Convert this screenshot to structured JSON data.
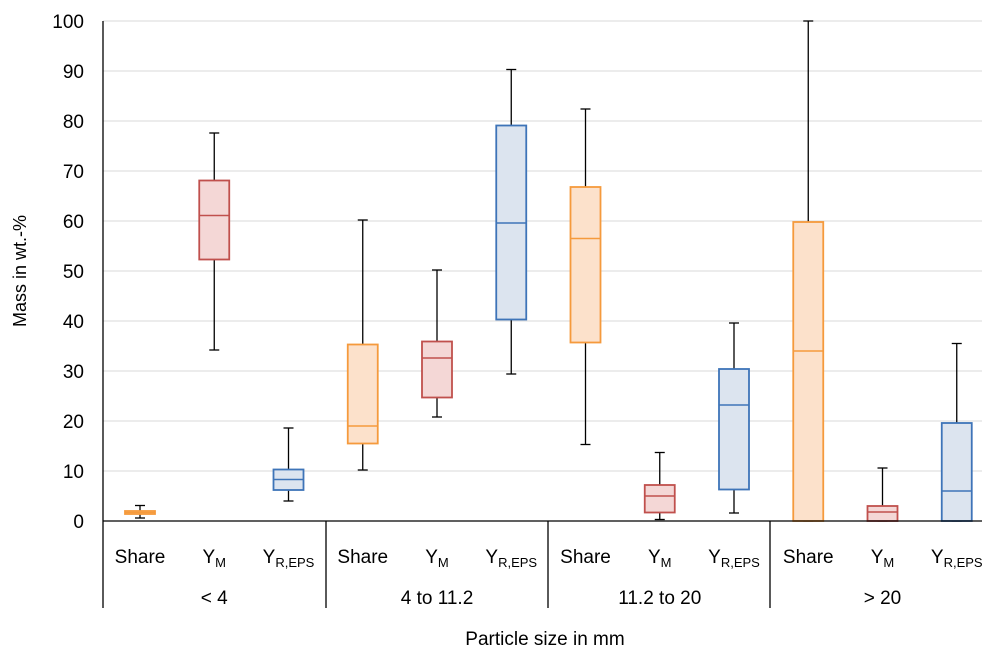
{
  "chart_data": {
    "type": "boxplot",
    "title": "",
    "xlabel": "Particle size in mm",
    "ylabel": "Mass in wt.-%",
    "ylim": [
      0,
      100
    ],
    "yticks": [
      "0",
      "10",
      "20",
      "30",
      "40",
      "50",
      "60",
      "70",
      "80",
      "90",
      "100"
    ],
    "grid": "horizontal",
    "groups": [
      "< 4",
      "4 to 11.2",
      "11.2 to 20",
      "> 20"
    ],
    "categories": [
      {
        "group": "< 4",
        "label": "Share",
        "sub": "",
        "color": "#F59A3C",
        "fill": "#FCE1CB",
        "min": 0.6,
        "q1": 1.4,
        "median": 1.7,
        "q3": 2.0,
        "max": 3.1
      },
      {
        "group": "< 4",
        "label": "Y",
        "sub": "M",
        "color": "#C0504D",
        "fill": "#F4D7D6",
        "min": 34.2,
        "q1": 52.3,
        "median": 61.1,
        "q3": 68.1,
        "max": 77.6
      },
      {
        "group": "< 4",
        "label": "Y",
        "sub": "R,EPS",
        "color": "#3E74B8",
        "fill": "#DCE4EF",
        "min": 4.0,
        "q1": 6.2,
        "median": 8.3,
        "q3": 10.3,
        "max": 18.6
      },
      {
        "group": "4 to 11.2",
        "label": "Share",
        "sub": "",
        "color": "#F59A3C",
        "fill": "#FCE1CB",
        "min": 10.2,
        "q1": 15.5,
        "median": 19.0,
        "q3": 35.3,
        "max": 60.2
      },
      {
        "group": "4 to 11.2",
        "label": "Y",
        "sub": "M",
        "color": "#C0504D",
        "fill": "#F4D7D6",
        "min": 20.8,
        "q1": 24.7,
        "median": 32.6,
        "q3": 35.9,
        "max": 50.2
      },
      {
        "group": "4 to 11.2",
        "label": "Y",
        "sub": "R,EPS",
        "color": "#3E74B8",
        "fill": "#DCE4EF",
        "min": 29.4,
        "q1": 40.3,
        "median": 59.6,
        "q3": 79.1,
        "max": 90.3
      },
      {
        "group": "11.2 to 20",
        "label": "Share",
        "sub": "",
        "color": "#F59A3C",
        "fill": "#FCE1CB",
        "min": 15.3,
        "q1": 35.7,
        "median": 56.5,
        "q3": 66.8,
        "max": 82.4
      },
      {
        "group": "11.2 to 20",
        "label": "Y",
        "sub": "M",
        "color": "#C0504D",
        "fill": "#F4D7D6",
        "min": 0.3,
        "q1": 1.7,
        "median": 5.0,
        "q3": 7.2,
        "max": 13.7
      },
      {
        "group": "11.2 to 20",
        "label": "Y",
        "sub": "R,EPS",
        "color": "#3E74B8",
        "fill": "#DCE4EF",
        "min": 1.6,
        "q1": 6.3,
        "median": 23.2,
        "q3": 30.4,
        "max": 39.6
      },
      {
        "group": "> 20",
        "label": "Share",
        "sub": "",
        "color": "#F59A3C",
        "fill": "#FCE1CB",
        "min": 0,
        "q1": 0,
        "median": 34.0,
        "q3": 59.8,
        "max": 100
      },
      {
        "group": "> 20",
        "label": "Y",
        "sub": "M",
        "color": "#C0504D",
        "fill": "#F4D7D6",
        "min": 0,
        "q1": 0,
        "median": 1.8,
        "q3": 3.0,
        "max": 10.6
      },
      {
        "group": "> 20",
        "label": "Y",
        "sub": "R,EPS",
        "color": "#3E74B8",
        "fill": "#DCE4EF",
        "min": 0,
        "q1": 0,
        "median": 6.0,
        "q3": 19.6,
        "max": 35.5
      }
    ]
  }
}
